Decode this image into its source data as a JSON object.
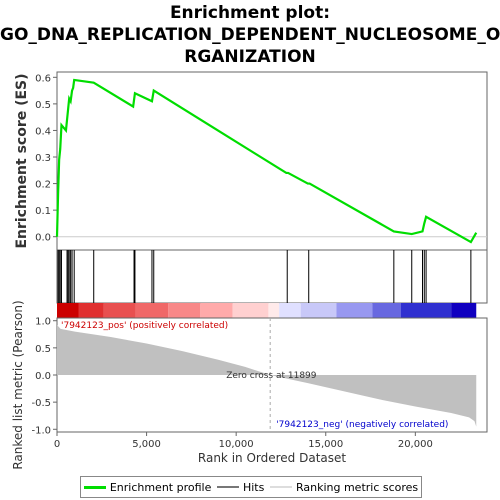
{
  "title_lines": [
    "Enrichment plot:",
    "GO_DNA_REPLICATION_DEPENDENT_NUCLEOSOME_O",
    "RGANIZATION"
  ],
  "colors": {
    "enrichment_line": "#00dd00",
    "hits": "#000000",
    "metric_fill": "#c0c0c0",
    "pos_label": "#cc0000",
    "neg_label": "#0000cc",
    "zero_line": "#cccccc"
  },
  "chart_data": [
    {
      "type": "line",
      "panel": "enrichment",
      "ylabel": "Enrichment score (ES)",
      "ylim": [
        -0.05,
        0.62
      ],
      "yticks": [
        "0.0",
        "0.1",
        "0.2",
        "0.3",
        "0.4",
        "0.5",
        "0.6"
      ],
      "ytick_values": [
        0.0,
        0.1,
        0.2,
        0.3,
        0.4,
        0.5,
        0.6
      ],
      "xlim": [
        0,
        24000
      ],
      "series": [
        {
          "x": [
            0,
            60,
            120,
            180,
            250,
            500,
            560,
            620,
            680,
            760,
            840,
            900,
            960,
            2050,
            4250,
            4350,
            5300,
            5400,
            12800,
            12900,
            14000,
            14100,
            18800,
            19800,
            20400,
            20500,
            20600,
            23100,
            23400
          ],
          "y": [
            0.0,
            0.16,
            0.29,
            0.33,
            0.42,
            0.4,
            0.44,
            0.48,
            0.52,
            0.51,
            0.55,
            0.56,
            0.59,
            0.58,
            0.49,
            0.54,
            0.51,
            0.55,
            0.24,
            0.24,
            0.2,
            0.2,
            0.02,
            0.01,
            0.02,
            0.05,
            0.075,
            -0.02,
            0.015
          ]
        }
      ]
    },
    {
      "type": "scatter",
      "panel": "hits",
      "hit_positions": [
        60,
        120,
        180,
        250,
        560,
        620,
        680,
        760,
        840,
        960,
        2050,
        4300,
        4350,
        5300,
        5400,
        12850,
        14050,
        18800,
        19800,
        20400,
        20500,
        20600,
        23100
      ]
    },
    {
      "type": "area",
      "panel": "ranked_metric",
      "ylabel": "Ranked list metric (Pearson)",
      "xlabel": "Rank in Ordered Dataset",
      "ylim": [
        -1.05,
        1.05
      ],
      "yticks": [
        "-1.0",
        "-0.5",
        "0.0",
        "0.5",
        "1.0"
      ],
      "ytick_values": [
        -1.0,
        -0.5,
        0.0,
        0.5,
        1.0
      ],
      "xticks": [
        "0",
        "5,000",
        "10,000",
        "15,000",
        "20,000"
      ],
      "xtick_values": [
        0,
        5000,
        10000,
        15000,
        20000
      ],
      "xlim": [
        0,
        24000
      ],
      "x": [
        0,
        200,
        1000,
        3000,
        5000,
        7000,
        9000,
        10500,
        11899,
        14000,
        16000,
        18000,
        20000,
        22000,
        23000,
        23300,
        23400
      ],
      "y": [
        0.92,
        0.85,
        0.8,
        0.7,
        0.58,
        0.44,
        0.28,
        0.15,
        0.0,
        -0.15,
        -0.3,
        -0.45,
        -0.58,
        -0.7,
        -0.78,
        -0.85,
        -0.95
      ],
      "zero_cross": 11899,
      "annotations": {
        "pos": "'7942123_pos' (positively correlated)",
        "zero": "Zero cross at 11899",
        "neg": "'7942123_neg' (negatively correlated)"
      }
    }
  ],
  "legend": {
    "items": [
      "Enrichment profile",
      "Hits",
      "Ranking metric scores"
    ]
  }
}
